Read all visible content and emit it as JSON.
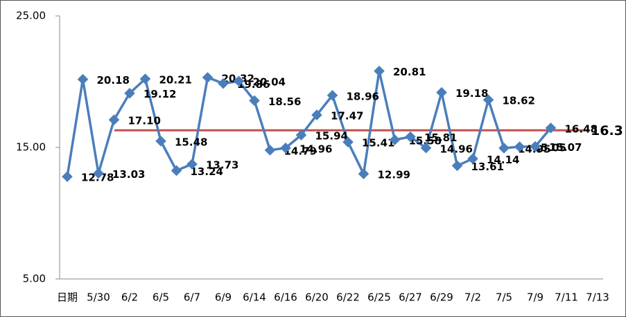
{
  "chart_data": {
    "type": "line",
    "categories": [
      "日期",
      null,
      "5/30",
      null,
      "6/2",
      null,
      "6/5",
      null,
      "6/7",
      null,
      "6/9",
      null,
      "6/14",
      null,
      "6/16",
      null,
      "6/20",
      null,
      "6/22",
      null,
      "6/25",
      null,
      "6/27",
      null,
      "6/29",
      null,
      "7/2",
      null,
      "7/5",
      null,
      "7/9",
      null,
      "7/11",
      null,
      "7/13"
    ],
    "series": [
      {
        "color": "#4a7ebb",
        "values": [
          12.78,
          20.18,
          13.03,
          17.1,
          19.12,
          20.21,
          15.48,
          13.24,
          13.73,
          20.32,
          19.86,
          20.04,
          18.56,
          14.79,
          14.96,
          15.94,
          17.47,
          18.96,
          15.41,
          12.99,
          20.81,
          15.58,
          15.81,
          14.96,
          19.18,
          13.61,
          14.14,
          18.62,
          14.95,
          15.05,
          15.07,
          16.48,
          null,
          null,
          null
        ],
        "value_labels": [
          "12.78",
          "20.18",
          "13.03",
          "17.10",
          "19.12",
          "20.21",
          "15.48",
          "13.24",
          "13.73",
          "20.32",
          "19.86",
          "20.04",
          "18.56",
          "14.79",
          "14.96",
          "15.94",
          "17.47",
          "18.96",
          "15.41",
          "12.99",
          "20.81",
          "15.58",
          "15.81",
          "14.96",
          "19.18",
          "13.61",
          "14.14",
          "18.62",
          "14.95",
          "15.05",
          "15.07",
          "16.48",
          null,
          null,
          null
        ]
      }
    ],
    "reference_line": {
      "value": 16.3,
      "color": "#c0504d"
    },
    "ylim": [
      5,
      25
    ],
    "yticks": [
      {
        "value": 5,
        "label": "5.00"
      },
      {
        "value": 15,
        "label": "15.00"
      },
      {
        "value": 25,
        "label": "25.00"
      }
    ]
  }
}
